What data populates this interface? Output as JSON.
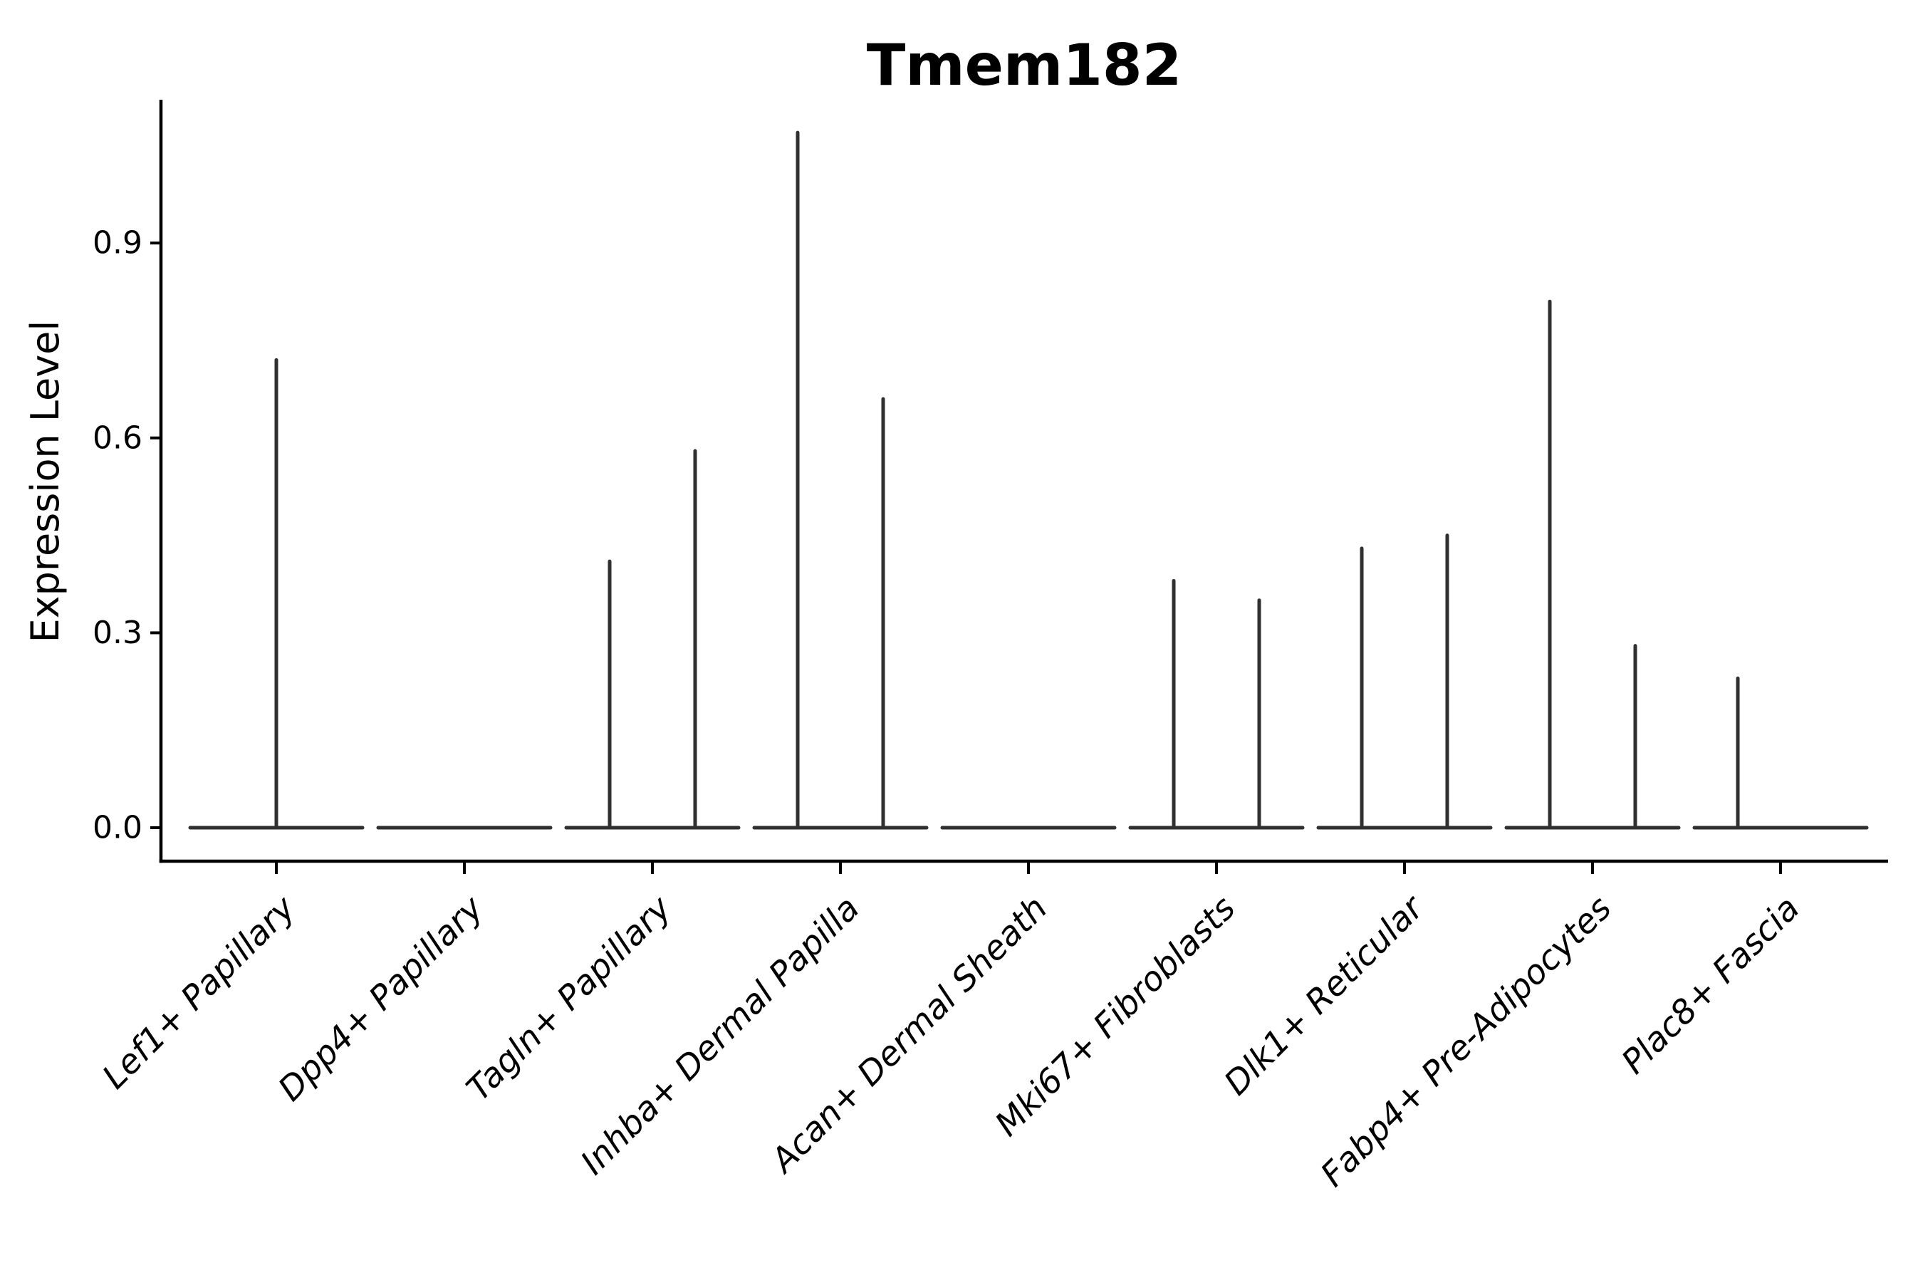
{
  "chart_data": {
    "type": "violin",
    "title": "Tmem182",
    "ylabel": "Expression Level",
    "xlabel": "",
    "yticks": [
      {
        "value": 0.0,
        "label": "0.0"
      },
      {
        "value": 0.3,
        "label": "0.3"
      },
      {
        "value": 0.6,
        "label": "0.6"
      },
      {
        "value": 0.9,
        "label": "0.9"
      }
    ],
    "ylim": [
      0,
      1.12
    ],
    "grid": false,
    "legend": "none",
    "spines": [
      "left",
      "bottom"
    ],
    "x_label_rotation_deg": 45,
    "x_label_style": "italic",
    "categories": [
      {
        "label": "Lef1+ Papillary",
        "spikes": [
          {
            "pos": "center",
            "value": 0.72
          }
        ]
      },
      {
        "label": "Dpp4+ Papillary",
        "spikes": []
      },
      {
        "label": "Tagln+ Papillary",
        "spikes": [
          {
            "pos": "left",
            "value": 0.41
          },
          {
            "pos": "right",
            "value": 0.58
          }
        ]
      },
      {
        "label": "Inhba+ Dermal Papilla",
        "spikes": [
          {
            "pos": "left",
            "value": 1.07
          },
          {
            "pos": "right",
            "value": 0.66
          }
        ]
      },
      {
        "label": "Acan+ Dermal Sheath",
        "spikes": []
      },
      {
        "label": "Mki67+ Fibroblasts",
        "spikes": [
          {
            "pos": "left",
            "value": 0.38
          },
          {
            "pos": "right",
            "value": 0.35
          }
        ]
      },
      {
        "label": "Dlk1+ Reticular",
        "spikes": [
          {
            "pos": "left",
            "value": 0.43
          },
          {
            "pos": "right",
            "value": 0.45
          }
        ]
      },
      {
        "label": "Fabp4+ Pre-Adipocytes",
        "spikes": [
          {
            "pos": "left",
            "value": 0.81
          },
          {
            "pos": "right",
            "value": 0.28
          }
        ]
      },
      {
        "label": "Plac8+ Fascia",
        "spikes": [
          {
            "pos": "left",
            "value": 0.23
          }
        ]
      }
    ],
    "colors": {
      "violin_line": "#303030",
      "axis_line": "#000000",
      "text": "#000000",
      "background": "#ffffff"
    }
  }
}
